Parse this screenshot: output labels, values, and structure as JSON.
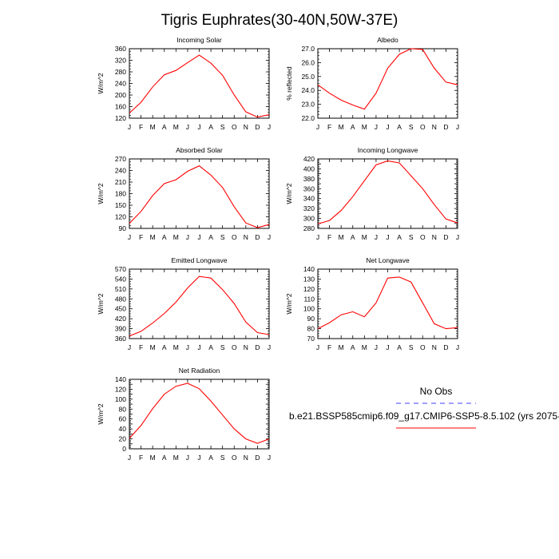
{
  "title": "Tigris Euphrates(30-40N,50W-37E)",
  "legend": {
    "obs_label": "No Obs",
    "model_label": "b.e21.BSSP585cmip6.f09_g17.CMIP6-SSP5-8.5.102 (yrs 2075-",
    "obs_color": "#6666ff",
    "model_color": "#ff0000"
  },
  "months": [
    "J",
    "F",
    "M",
    "A",
    "M",
    "J",
    "J",
    "A",
    "S",
    "O",
    "N",
    "D",
    "J"
  ],
  "chart_data": [
    {
      "type": "line",
      "title": "Incoming Solar",
      "xlabel": "",
      "ylabel": "W/m^2",
      "ylim": [
        120,
        360
      ],
      "yticks": [
        120,
        160,
        200,
        240,
        280,
        320,
        360
      ],
      "series": [
        {
          "values": [
            138,
            175,
            228,
            270,
            285,
            312,
            338,
            310,
            268,
            200,
            142,
            124,
            132
          ]
        }
      ]
    },
    {
      "type": "line",
      "title": "Albedo",
      "xlabel": "",
      "ylabel": "% reflected",
      "ylim": [
        22.0,
        27.0
      ],
      "yticks": [
        "22.0",
        "23.0",
        "24.0",
        "25.0",
        "26.0",
        "27.0"
      ],
      "series": [
        {
          "values": [
            24.4,
            23.8,
            23.3,
            22.95,
            22.65,
            23.8,
            25.6,
            26.6,
            27.0,
            26.95,
            25.6,
            24.6,
            24.4
          ]
        }
      ]
    },
    {
      "type": "line",
      "title": "Absorbed Solar",
      "xlabel": "",
      "ylabel": "W/m^2",
      "ylim": [
        90,
        270
      ],
      "yticks": [
        90,
        120,
        150,
        180,
        210,
        240,
        270
      ],
      "series": [
        {
          "values": [
            103,
            134,
            175,
            206,
            216,
            238,
            252,
            228,
            196,
            146,
            104,
            92,
            100
          ]
        }
      ]
    },
    {
      "type": "line",
      "title": "Incoming Longwave",
      "xlabel": "",
      "ylabel": "W/m^2",
      "ylim": [
        280,
        420
      ],
      "yticks": [
        280,
        290,
        300,
        310,
        320,
        330,
        340,
        350,
        360,
        370,
        380,
        390,
        400,
        410,
        420
      ],
      "series": [
        {
          "values": [
            289,
            296,
            316,
            344,
            376,
            408,
            416,
            412,
            386,
            360,
            328,
            299,
            291
          ]
        }
      ]
    },
    {
      "type": "line",
      "title": "Emitted Longwave",
      "xlabel": "",
      "ylabel": "W/m^2",
      "ylim": [
        360,
        570
      ],
      "yticks": [
        360,
        390,
        420,
        450,
        480,
        510,
        540,
        570
      ],
      "series": [
        {
          "values": [
            368,
            382,
            407,
            436,
            470,
            513,
            548,
            543,
            508,
            466,
            410,
            378,
            372
          ]
        }
      ]
    },
    {
      "type": "line",
      "title": "Net Longwave",
      "xlabel": "",
      "ylabel": "W/m^2",
      "ylim": [
        70,
        140
      ],
      "yticks": [
        70,
        80,
        90,
        100,
        110,
        120,
        130,
        140
      ],
      "series": [
        {
          "values": [
            80,
            86,
            94,
            97,
            92,
            106,
            131,
            132,
            127,
            106,
            85,
            80,
            81
          ]
        }
      ]
    },
    {
      "type": "line",
      "title": "Net Radiation",
      "xlabel": "",
      "ylabel": "W/m^2",
      "ylim": [
        0,
        140
      ],
      "yticks": [
        0,
        10,
        20,
        30,
        40,
        50,
        60,
        70,
        80,
        90,
        100,
        110,
        120,
        130,
        140
      ],
      "series": [
        {
          "values": [
            21,
            47,
            81,
            110,
            126,
            132,
            121,
            96,
            68,
            40,
            20,
            11,
            20
          ]
        }
      ]
    }
  ]
}
